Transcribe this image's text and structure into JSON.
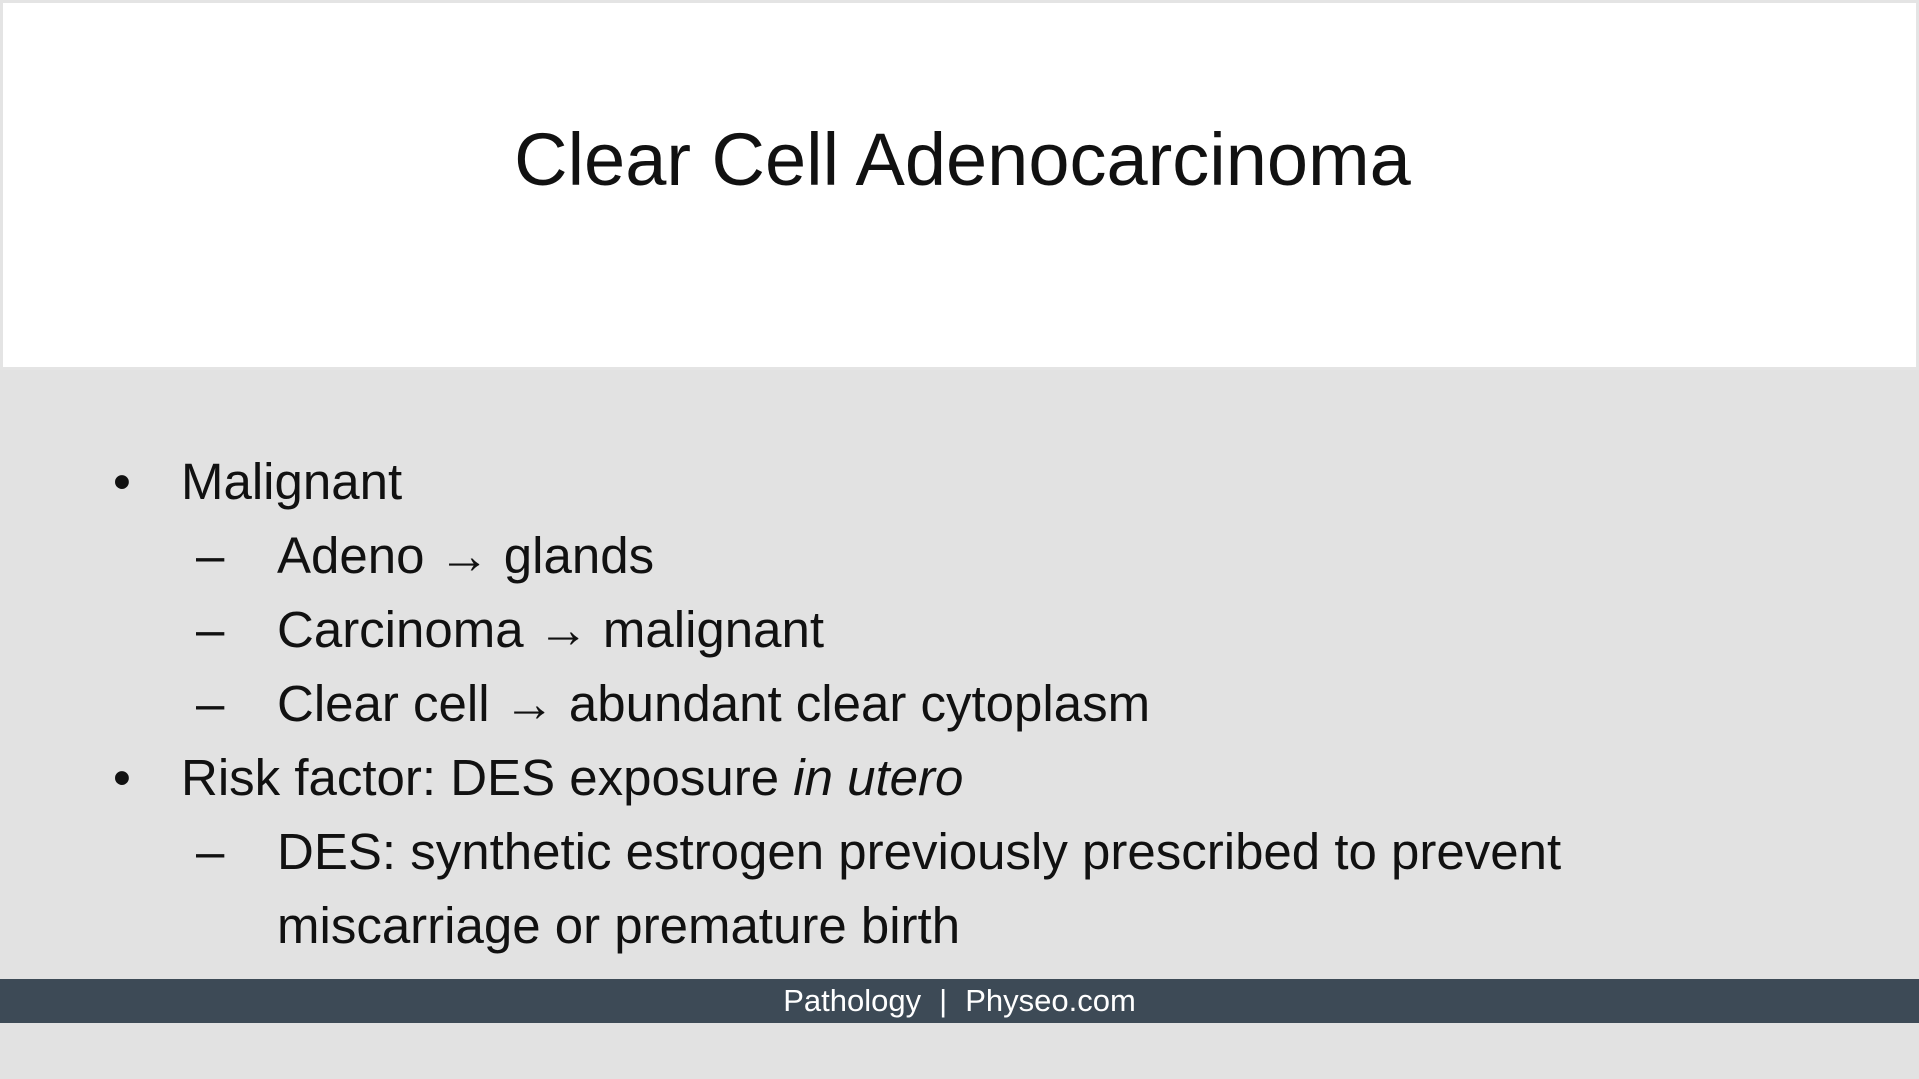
{
  "slide": {
    "title": "Clear Cell Adenocarcinoma",
    "bullets": [
      {
        "marker": "•",
        "text": "Malignant",
        "children": [
          {
            "marker": "–",
            "text": "Adeno → glands"
          },
          {
            "marker": "–",
            "text": "Carcinoma → malignant"
          },
          {
            "marker": "–",
            "text": "Clear cell → abundant clear cytoplasm"
          }
        ]
      },
      {
        "marker": "•",
        "text_plain": "Risk factor: DES exposure ",
        "text_italic": "in utero",
        "children": [
          {
            "marker": "–",
            "text_line1": "DES: synthetic estrogen previously prescribed to prevent",
            "text_line2": "miscarriage or premature birth"
          }
        ]
      }
    ]
  },
  "footer": {
    "subject": "Pathology",
    "separator": "|",
    "site": "Physeo.com"
  },
  "colors": {
    "background": "#e2e2e2",
    "title_panel": "#ffffff",
    "footer_bar": "#3d4a56",
    "text": "#111111",
    "footer_text": "#ffffff"
  }
}
